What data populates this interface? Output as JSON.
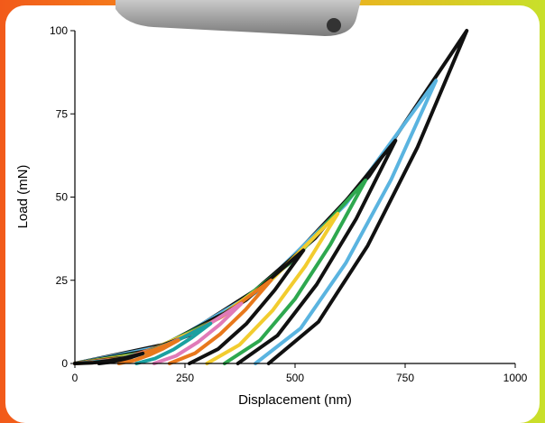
{
  "chart_data": {
    "type": "line",
    "x_label": "Displacement (nm)",
    "y_label": "Load (mN)",
    "xlim": [
      0,
      1000
    ],
    "xticks": [
      0,
      250,
      500,
      750,
      1000
    ],
    "ylim": [
      0,
      100
    ],
    "yticks": [
      0,
      25,
      50,
      75,
      100
    ],
    "series": [
      {
        "color": "#111111",
        "x": [
          0,
          223,
          445,
          668,
          890,
          778,
          665,
          553,
          440
        ],
        "values": [
          0,
          6.3,
          25,
          56.3,
          100,
          65,
          35.4,
          12.5,
          0
        ]
      },
      {
        "color": "#5ab4e0",
        "x": [
          0,
          205,
          410,
          615,
          820,
          718,
          615,
          513,
          410
        ],
        "values": [
          0,
          5.3,
          21.3,
          47.8,
          85,
          55.2,
          30.1,
          10.6,
          0
        ]
      },
      {
        "color": "#111111",
        "x": [
          0,
          182,
          364,
          546,
          728,
          639,
          549,
          460,
          370
        ],
        "values": [
          0,
          4.2,
          16.8,
          37.7,
          67,
          43.5,
          23.7,
          8.4,
          0
        ]
      },
      {
        "color": "#2ea84f",
        "x": [
          0,
          165,
          330,
          495,
          660,
          580,
          500,
          420,
          340
        ],
        "values": [
          0,
          3.4,
          13.8,
          30.9,
          55,
          35.7,
          19.4,
          6.9,
          0
        ]
      },
      {
        "color": "#f2cc2e",
        "x": [
          0,
          149,
          299,
          448,
          597,
          523,
          449,
          374,
          300
        ],
        "values": [
          0,
          2.8,
          11.3,
          25.3,
          45,
          29.2,
          15.9,
          5.6,
          0
        ]
      },
      {
        "color": "#111111",
        "x": [
          0,
          130,
          260,
          389,
          519,
          454,
          390,
          325,
          260
        ],
        "values": [
          0,
          2.1,
          8.5,
          19.1,
          34,
          22.1,
          12,
          4.3,
          0
        ]
      },
      {
        "color": "#e8781c",
        "x": [
          0,
          111,
          223,
          334,
          445,
          388,
          330,
          273,
          215
        ],
        "values": [
          0,
          1.6,
          6.3,
          14.1,
          25,
          16.2,
          8.8,
          3.1,
          0
        ]
      },
      {
        "color": "#e07bb8",
        "x": [
          0,
          95,
          189,
          284,
          378,
          329,
          279,
          230,
          180
        ],
        "values": [
          0,
          1.1,
          4.5,
          10.1,
          18,
          11.7,
          6.4,
          2.3,
          0
        ]
      },
      {
        "color": "#1aa0a0",
        "x": [
          0,
          77,
          154,
          231,
          308,
          266,
          224,
          182,
          140
        ],
        "values": [
          0,
          0.8,
          3,
          6.8,
          12,
          7.8,
          4.2,
          1.5,
          0
        ]
      },
      {
        "color": "#e8781c",
        "x": [
          0,
          59,
          118,
          176,
          235,
          201,
          168,
          134,
          100
        ],
        "values": [
          0,
          0.4,
          1.8,
          3.9,
          7,
          4.5,
          2.5,
          0.9,
          0
        ]
      },
      {
        "color": "#111111",
        "x": [
          0,
          39,
          77,
          116,
          154,
          129,
          105,
          80,
          55
        ],
        "values": [
          0,
          0.2,
          0.8,
          1.7,
          3,
          1.9,
          1.1,
          0.4,
          0
        ]
      }
    ]
  }
}
